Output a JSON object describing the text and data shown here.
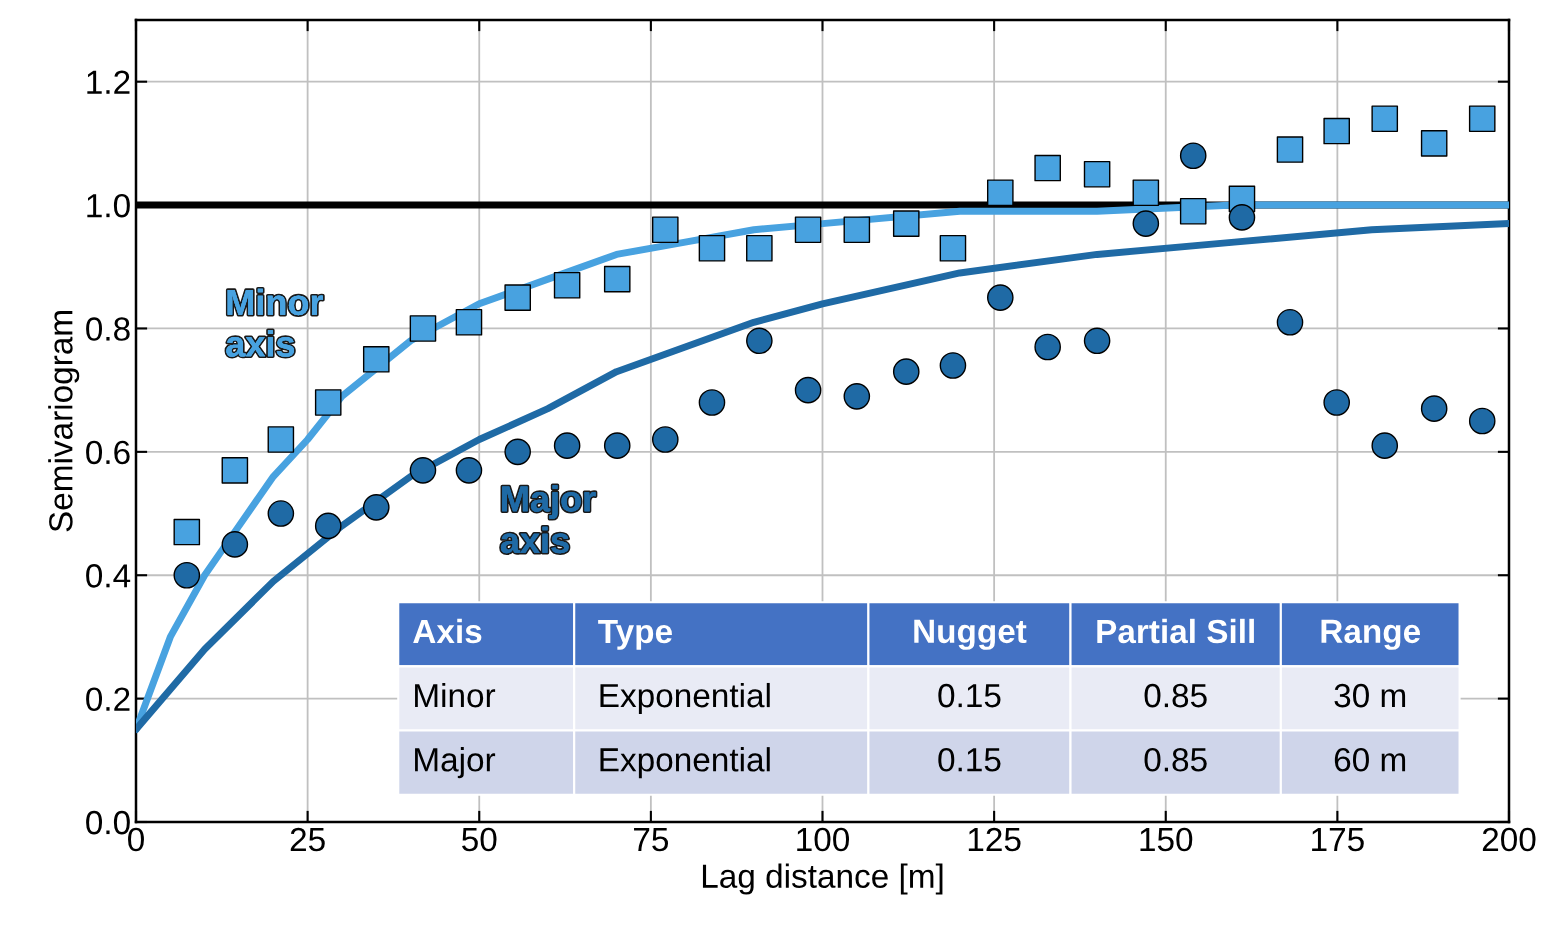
{
  "chart_data": {
    "type": "scatter",
    "xlabel": "Lag distance [m]",
    "ylabel": "Semivariogram",
    "xlim": [
      0,
      200
    ],
    "ylim": [
      0,
      1.3
    ],
    "xticks": [
      0,
      25,
      50,
      75,
      100,
      125,
      150,
      175,
      200
    ],
    "yticks": [
      {
        "value": 0,
        "label": "0.0"
      },
      {
        "value": 0.2,
        "label": "0.2"
      },
      {
        "value": 0.4,
        "label": "0.4"
      },
      {
        "value": 0.6,
        "label": "0.6"
      },
      {
        "value": 0.8,
        "label": "0.8"
      },
      {
        "value": 1.0,
        "label": "1.0"
      },
      {
        "value": 1.2,
        "label": "1.2"
      }
    ],
    "grid": true,
    "ref_lines": [
      {
        "axis": "y",
        "value": 1.0,
        "color": "#000000",
        "line_style": "solid"
      }
    ],
    "series": [
      {
        "marker": "square",
        "color": "#48a2e0",
        "x": [
          7.4,
          14.4,
          21.1,
          28.0,
          35.0,
          41.8,
          48.5,
          55.6,
          62.8,
          70.1,
          77.1,
          83.9,
          90.8,
          97.9,
          105.0,
          112.2,
          119.0,
          125.9,
          132.8,
          140.0,
          147.1,
          154.0,
          161.1,
          168.1,
          174.9,
          181.9,
          189.1,
          196.1
        ],
        "values": [
          0.47,
          0.57,
          0.62,
          0.68,
          0.75,
          0.8,
          0.81,
          0.85,
          0.87,
          0.88,
          0.96,
          0.93,
          0.93,
          0.96,
          0.96,
          0.97,
          0.93,
          1.02,
          1.06,
          1.05,
          1.02,
          0.99,
          1.01,
          1.09,
          1.12,
          1.14,
          1.1,
          1.14
        ]
      },
      {
        "marker": "circle",
        "color": "#1f6aa5",
        "x": [
          7.4,
          14.4,
          21.1,
          28.0,
          35.0,
          41.8,
          48.5,
          55.6,
          62.8,
          70.1,
          77.1,
          83.9,
          90.8,
          97.9,
          105.0,
          112.2,
          119.0,
          125.9,
          132.8,
          140.0,
          147.1,
          154.0,
          161.1,
          168.1,
          174.9,
          181.9,
          189.1,
          196.1
        ],
        "values": [
          0.4,
          0.45,
          0.5,
          0.48,
          0.51,
          0.57,
          0.57,
          0.6,
          0.61,
          0.61,
          0.62,
          0.68,
          0.78,
          0.7,
          0.69,
          0.73,
          0.74,
          0.85,
          0.77,
          0.78,
          0.97,
          1.08,
          0.98,
          0.81,
          0.68,
          0.61,
          0.67,
          0.65
        ]
      },
      {
        "type": "line",
        "marker": "none",
        "color": "#48a2e0",
        "x": [
          0,
          5,
          10,
          15,
          20,
          25,
          30,
          40,
          50,
          60,
          70,
          80,
          90,
          100,
          120,
          140,
          160,
          180,
          200
        ],
        "values": [
          0.15,
          0.3,
          0.4,
          0.48,
          0.56,
          0.62,
          0.69,
          0.78,
          0.84,
          0.88,
          0.92,
          0.94,
          0.96,
          0.97,
          0.99,
          0.99,
          1.0,
          1.0,
          1.0
        ]
      },
      {
        "type": "line",
        "marker": "none",
        "color": "#1f6aa5",
        "x": [
          0,
          10,
          20,
          30,
          40,
          50,
          60,
          70,
          80,
          90,
          100,
          120,
          140,
          160,
          180,
          200
        ],
        "values": [
          0.15,
          0.28,
          0.39,
          0.48,
          0.56,
          0.62,
          0.67,
          0.73,
          0.77,
          0.81,
          0.84,
          0.89,
          0.92,
          0.94,
          0.96,
          0.97
        ]
      }
    ],
    "annotations": [
      "Minor\naxis",
      "Major\naxis",
      "Axis",
      "Type",
      "Nugget",
      "Partial Sill",
      "Range",
      "Minor",
      "Exponential",
      "0.15",
      "0.85",
      "30 m",
      "Major",
      "Exponential",
      "0.15",
      "0.85",
      "60 m"
    ]
  }
}
